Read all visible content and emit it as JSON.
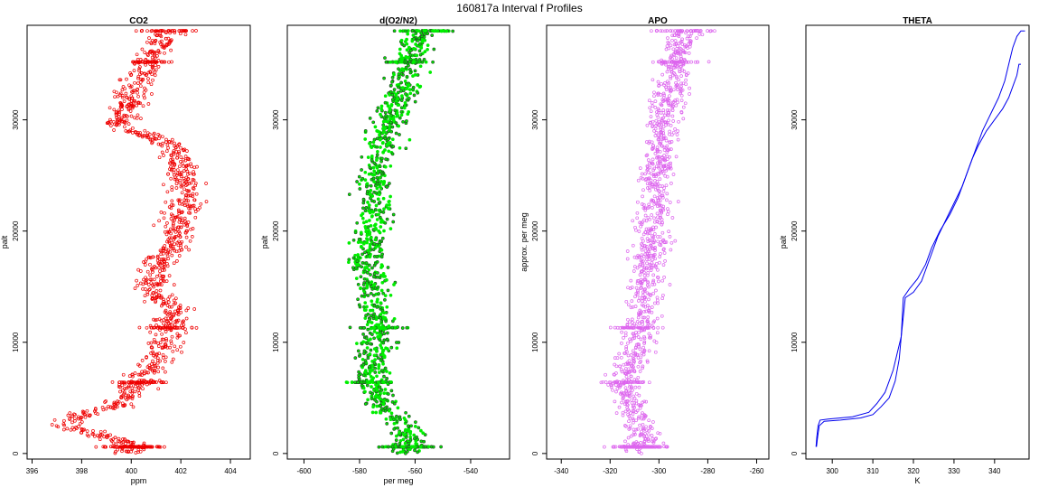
{
  "figure": {
    "title": "160817a   Interval f Profiles"
  },
  "chart_data": [
    {
      "type": "scatter",
      "title": "CO2",
      "xlabel": "ppm",
      "ylabel": "palt",
      "xlim": [
        395.8,
        404.8
      ],
      "ylim": [
        -500,
        38500
      ],
      "xticks": [
        396,
        398,
        400,
        402,
        404
      ],
      "yticks": [
        0,
        10000,
        20000,
        30000
      ],
      "marker_color": "#ee0000",
      "marker_style": "open-circle",
      "series": [
        {
          "x": [
            400.1,
            398.9,
            397.3,
            398.0,
            399.6,
            400.4,
            400.9,
            401.3,
            401.5,
            401.7,
            400.8,
            401.0,
            401.6,
            402.0,
            402.2,
            401.8,
            399.6,
            400.0,
            401.5
          ],
          "y": [
            600,
            1500,
            2600,
            3500,
            4500,
            6400,
            8000,
            9500,
            11300,
            13000,
            14500,
            16500,
            18500,
            21000,
            24500,
            27500,
            29500,
            32500,
            38000
          ]
        }
      ]
    },
    {
      "type": "scatter",
      "title": "d(O2/N2)",
      "xlabel": "per meg",
      "ylabel": "palt",
      "xlim": [
        -606,
        -526
      ],
      "ylim": [
        -500,
        38500
      ],
      "xticks": [
        -600,
        -580,
        -560,
        -540
      ],
      "yticks": [
        0,
        10000,
        20000,
        30000
      ],
      "marker_color": "#00ee00",
      "marker_style": "filled-circle-dark-edge",
      "series": [
        {
          "x": [
            -563,
            -562,
            -563,
            -568,
            -572,
            -575,
            -576,
            -574,
            -572,
            -574,
            -575,
            -577,
            -577,
            -575,
            -574,
            -572,
            -570,
            -565,
            -563,
            -560,
            -560,
            -556
          ],
          "y": [
            600,
            1500,
            2600,
            3500,
            4500,
            6400,
            8000,
            9500,
            11300,
            13000,
            14500,
            16500,
            18500,
            21000,
            24500,
            27500,
            29500,
            32500,
            35200,
            36000,
            37000,
            38000
          ]
        }
      ]
    },
    {
      "type": "scatter",
      "title": "APO",
      "xlabel": "",
      "ylabel": "approx. per meg",
      "xlim": [
        -346,
        -255
      ],
      "ylim": [
        -500,
        38500
      ],
      "xticks": [
        -340,
        -320,
        -300,
        -280,
        -260
      ],
      "yticks": [
        0,
        10000,
        20000,
        30000
      ],
      "marker_color": "#dd66ee",
      "marker_style": "open-circle",
      "series": [
        {
          "x": [
            -307,
            -306,
            -307,
            -310,
            -312,
            -313,
            -312,
            -309,
            -308,
            -306,
            -305,
            -304,
            -303,
            -302,
            -301,
            -299,
            -298,
            -296,
            -293,
            -291,
            -290
          ],
          "y": [
            600,
            1500,
            2600,
            3500,
            4500,
            6400,
            8000,
            9500,
            11300,
            13000,
            14500,
            16500,
            18500,
            21000,
            24500,
            27500,
            29500,
            32500,
            35200,
            36000,
            38000
          ]
        }
      ]
    },
    {
      "type": "line",
      "title": "THETA",
      "xlabel": "K",
      "ylabel": "palt",
      "xlim": [
        293.5,
        348.5
      ],
      "ylim": [
        -500,
        38500
      ],
      "xticks": [
        300,
        310,
        320,
        330,
        340
      ],
      "yticks": [
        0,
        10000,
        20000,
        30000
      ],
      "line_color": "#0000ee",
      "series": [
        {
          "x": [
            296.0,
            296.2,
            296.5,
            297.0,
            299.0,
            305.0,
            309.0,
            311.0,
            313.0,
            315.0,
            316.0,
            317.0,
            317.5,
            319.0,
            321.0,
            323.0,
            324.5,
            326.5,
            329.0,
            331.0,
            333.0,
            334.5,
            336.0,
            338.0,
            340.0,
            342.0,
            343.5,
            344.5,
            345.5,
            346.0,
            346.5
          ],
          "y": [
            600,
            1500,
            2500,
            3000,
            3100,
            3300,
            3700,
            4500,
            5500,
            7500,
            9000,
            10500,
            14000,
            14800,
            15700,
            17000,
            18500,
            20000,
            21500,
            23000,
            25000,
            26500,
            27700,
            29000,
            30000,
            31000,
            32000,
            33000,
            34000,
            35000,
            35000
          ]
        },
        {
          "x": [
            296.1,
            296.4,
            296.8,
            298.0,
            302.0,
            307.0,
            310.0,
            312.0,
            314.0,
            315.5,
            316.5,
            317.0,
            318.0,
            320.0,
            322.0,
            324.0,
            326.0,
            328.0,
            330.0,
            332.0,
            333.5,
            335.0,
            337.0,
            339.0,
            341.0,
            342.5,
            343.5,
            344.5,
            345.5,
            346.5,
            347.5
          ],
          "y": [
            600,
            1500,
            2500,
            2900,
            3000,
            3200,
            3500,
            4200,
            5000,
            6500,
            8500,
            10500,
            14000,
            14500,
            15500,
            17500,
            19500,
            21000,
            22500,
            24000,
            25500,
            27000,
            29000,
            30500,
            32000,
            33500,
            35000,
            36500,
            37500,
            38000,
            38000
          ]
        }
      ]
    }
  ]
}
